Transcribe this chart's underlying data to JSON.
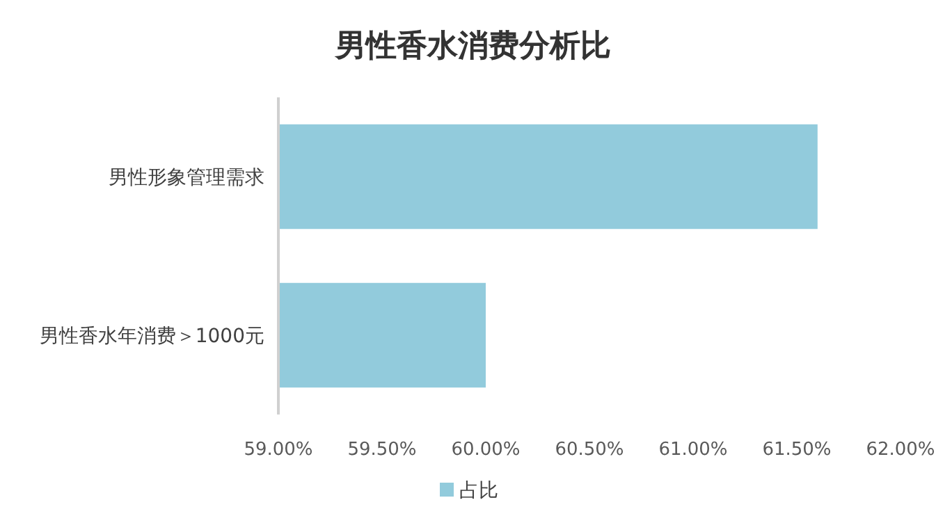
{
  "chart_data": {
    "type": "bar",
    "orientation": "horizontal",
    "title": "男性香水消费分析比",
    "categories": [
      "男性形象管理需求",
      "男性香水年消费＞1000元"
    ],
    "series": [
      {
        "name": "占比",
        "color": "#92cbdc",
        "values": [
          61.6,
          60.0
        ]
      }
    ],
    "xlim": [
      59,
      62
    ],
    "xticks": [
      {
        "value": 59,
        "label": "59.00%"
      },
      {
        "value": 59.5,
        "label": "59.50%"
      },
      {
        "value": 60,
        "label": "60.00%"
      },
      {
        "value": 60.5,
        "label": "60.50%"
      },
      {
        "value": 61,
        "label": "61.00%"
      },
      {
        "value": 61.5,
        "label": "61.50%"
      },
      {
        "value": 62,
        "label": "62.00%"
      }
    ],
    "grid": false,
    "legend": "bottom"
  }
}
